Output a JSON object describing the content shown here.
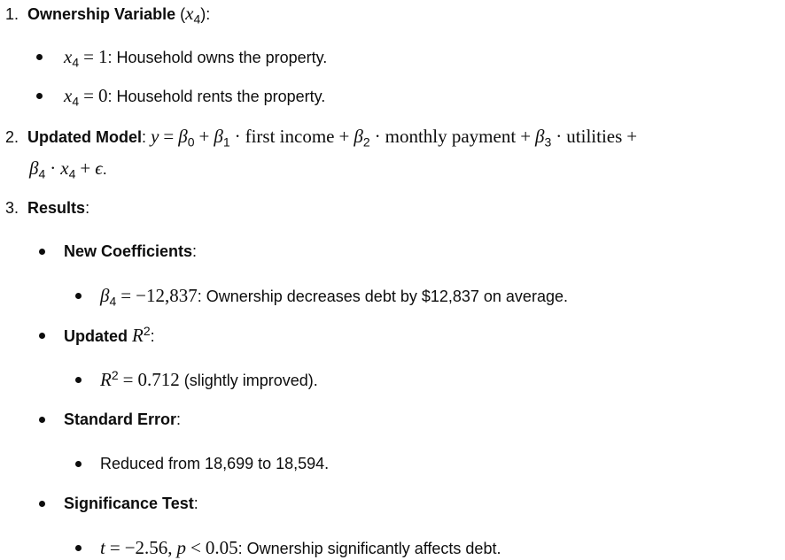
{
  "items": {
    "one": {
      "number": "1.",
      "title": "Ownership Variable",
      "var_symbol": "x",
      "var_subscript": "4",
      "bullets": [
        {
          "value": "1",
          "text": ": Household owns the property."
        },
        {
          "value": "0",
          "text": ": Household rents the property."
        }
      ]
    },
    "two": {
      "number": "2.",
      "title": "Updated Model",
      "term_first_income": "first income",
      "term_monthly_payment": "monthly payment",
      "term_utilities": "utilities"
    },
    "three": {
      "number": "3.",
      "title": "Results",
      "new_coefficients": {
        "label": "New Coefficients",
        "value": "−12,837",
        "text": ": Ownership decreases debt by $12,837 on average."
      },
      "updated_r2": {
        "label": "Updated",
        "value": "0.712",
        "text": " (slightly improved)."
      },
      "standard_error": {
        "label": "Standard Error",
        "text": "Reduced from 18,699 to 18,594."
      },
      "significance": {
        "label": "Significance Test",
        "t_value": "−2.56",
        "p_value": "0.05",
        "text": ": Ownership significantly affects debt."
      }
    }
  }
}
